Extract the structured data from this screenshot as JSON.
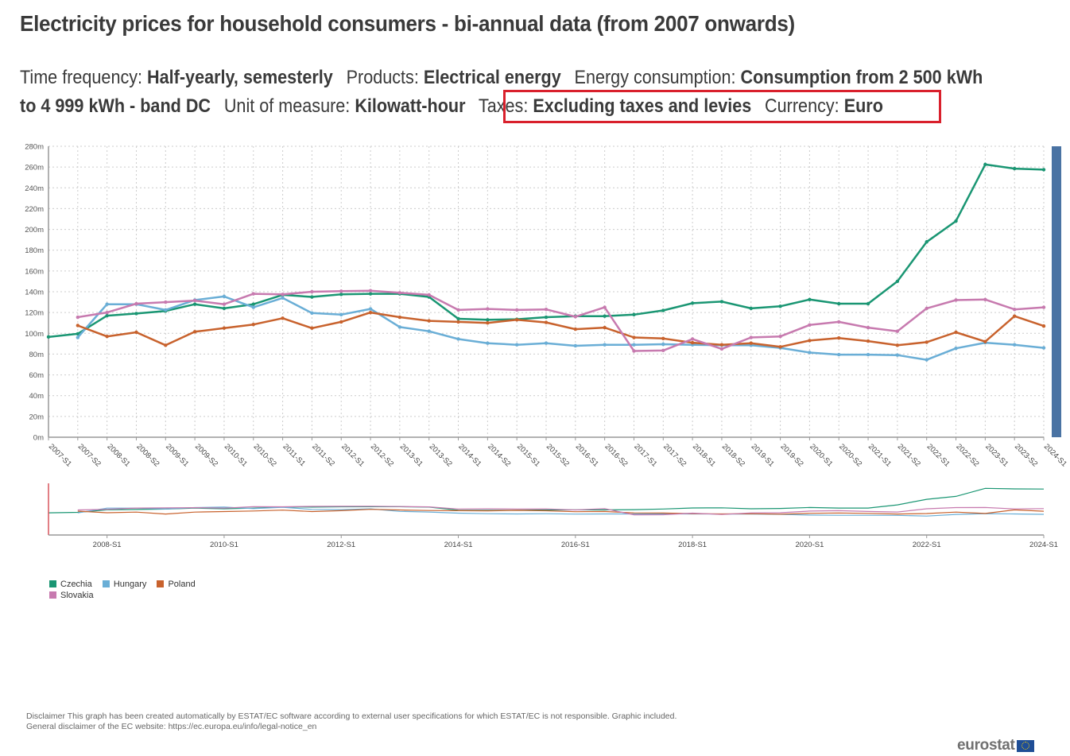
{
  "header": {
    "title": "Electricity prices for household consumers - bi-annual data (from 2007 onwards)",
    "filters": [
      {
        "label": "Time frequency: ",
        "value": "Half-yearly, semesterly"
      },
      {
        "label": "Products: ",
        "value": "Electrical energy"
      },
      {
        "label": "Energy consumption: ",
        "value": "Consumption from 2 500 kWh to 4 999 kWh - band DC"
      },
      {
        "label": "Unit of measure: ",
        "value": "Kilowatt-hour"
      },
      {
        "label": "Taxes: ",
        "value": "Excluding taxes and levies"
      },
      {
        "label": "Currency: ",
        "value": "Euro"
      }
    ],
    "highlight_color": "#d9202c"
  },
  "chart_data": {
    "type": "line",
    "title": "Electricity prices for household consumers - bi-annual data (from 2007 onwards)",
    "xlabel": "",
    "ylabel": "",
    "ylim": [
      0,
      280
    ],
    "yticks": [
      "0m",
      "20m",
      "40m",
      "60m",
      "80m",
      "100m",
      "120m",
      "140m",
      "160m",
      "180m",
      "200m",
      "220m",
      "240m",
      "260m",
      "280m"
    ],
    "grid": true,
    "legend_position": "bottom-left",
    "categories": [
      "2007-S1",
      "2007-S2",
      "2008-S1",
      "2008-S2",
      "2009-S1",
      "2009-S2",
      "2010-S1",
      "2010-S2",
      "2011-S1",
      "2011-S2",
      "2012-S1",
      "2012-S2",
      "2013-S1",
      "2013-S2",
      "2014-S1",
      "2014-S2",
      "2015-S1",
      "2015-S2",
      "2016-S1",
      "2016-S2",
      "2017-S1",
      "2017-S2",
      "2018-S1",
      "2018-S2",
      "2019-S1",
      "2019-S2",
      "2020-S1",
      "2020-S2",
      "2021-S1",
      "2021-S2",
      "2022-S1",
      "2022-S2",
      "2023-S1",
      "2023-S2",
      "2024-S1"
    ],
    "series": [
      {
        "name": "Czechia",
        "color": "#1a9673",
        "values": [
          96.5,
          99.5,
          117,
          119,
          121.5,
          128,
          124,
          128,
          137,
          135,
          137.5,
          138,
          138,
          135,
          114,
          113,
          113.5,
          115.5,
          116.5,
          116.5,
          118,
          122,
          129,
          130.5,
          124,
          126,
          132.5,
          128.5,
          128.5,
          150,
          188,
          208,
          262.5,
          258.5,
          257.5
        ]
      },
      {
        "name": "Hungary",
        "color": "#6aaed6",
        "values": [
          null,
          96,
          128,
          128,
          122.5,
          132,
          135.5,
          125,
          134,
          119.5,
          118,
          123.5,
          106,
          102,
          94.5,
          90.5,
          89,
          90.5,
          88,
          89,
          89,
          89.5,
          89,
          88.5,
          88.5,
          86,
          81.5,
          79.5,
          79.5,
          79,
          74.5,
          85.5,
          91,
          89,
          86
        ]
      },
      {
        "name": "Poland",
        "color": "#c8622d",
        "values": [
          null,
          107.5,
          97,
          101,
          88.5,
          101.5,
          105,
          108.5,
          114.5,
          105,
          111,
          120,
          115.5,
          112,
          111,
          110,
          113,
          110.5,
          104,
          105.5,
          96,
          95,
          91,
          89,
          90.5,
          87,
          93,
          95.5,
          92.5,
          88.5,
          91.5,
          101,
          92,
          116.5,
          107
        ]
      },
      {
        "name": "Slovakia",
        "color": "#c77aaf",
        "values": [
          null,
          115.5,
          120,
          128.5,
          130,
          131.5,
          128,
          138,
          137.5,
          140,
          140.5,
          141,
          139,
          137,
          122.5,
          123.5,
          122.5,
          123,
          116,
          125,
          83,
          83.5,
          94.5,
          85,
          96,
          97,
          108,
          111,
          105.5,
          102,
          124,
          132,
          132.5,
          123,
          125
        ]
      }
    ],
    "navigator": {
      "xticks": [
        "2008-S1",
        "2010-S1",
        "2012-S1",
        "2014-S1",
        "2016-S1",
        "2018-S1",
        "2020-S1",
        "2022-S1",
        "2024-S1"
      ]
    },
    "scrollbar_color": "#4a73a3"
  },
  "legend": [
    {
      "label": "Czechia",
      "color": "#1a9673"
    },
    {
      "label": "Hungary",
      "color": "#6aaed6"
    },
    {
      "label": "Poland",
      "color": "#c8622d"
    },
    {
      "label": "Slovakia",
      "color": "#c77aaf"
    }
  ],
  "footer": {
    "disclaimer_line1": "Disclaimer This graph has been created automatically by ESTAT/EC software according to external user specifications for which ESTAT/EC is not responsible. Graphic included.",
    "disclaimer_line2": "General disclaimer of the EC website: https://ec.europa.eu/info/legal-notice_en",
    "logo_text": "eurostat"
  }
}
